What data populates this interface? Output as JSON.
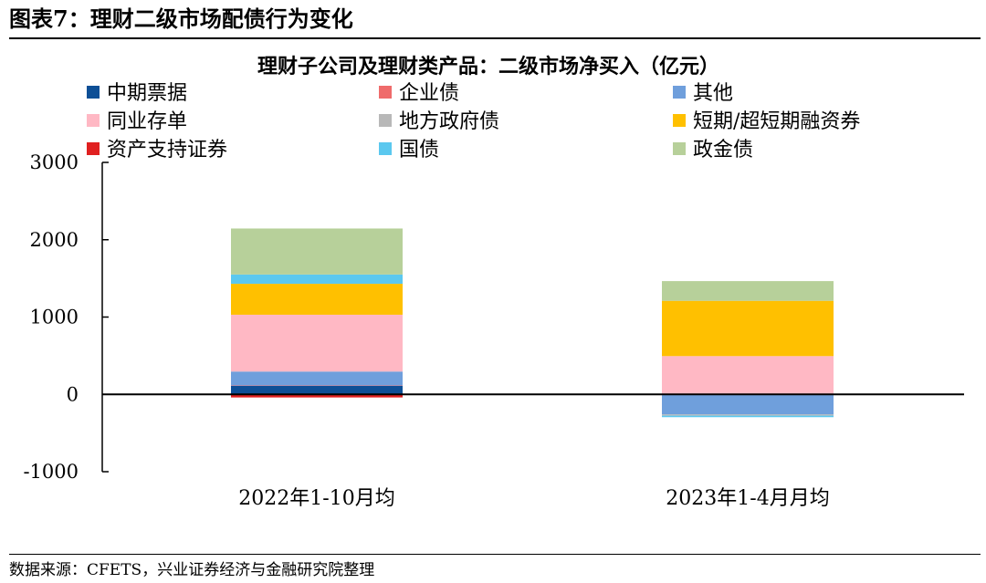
{
  "figure": {
    "title": "图表7：理财二级市场配债行为变化",
    "source": "数据来源：CFETS，兴业证券经济与金融研究院整理"
  },
  "chart_data": {
    "type": "bar",
    "stacked": true,
    "title": "理财子公司及理财类产品：二级市场净买入（亿元）",
    "xlabel": "",
    "ylabel": "",
    "ylim": [
      -1000,
      3000
    ],
    "yticks": [
      -1000,
      0,
      1000,
      2000,
      3000
    ],
    "grid": false,
    "legend_position": "top",
    "categories": [
      "2022年1-10月均",
      "2023年1-4月月均"
    ],
    "series": [
      {
        "name": "中期票据",
        "color": "#0d4f96",
        "values": [
          110,
          -10
        ]
      },
      {
        "name": "企业债",
        "color": "#ef6b6b",
        "values": [
          5,
          0
        ]
      },
      {
        "name": "其他",
        "color": "#6f9fdc",
        "values": [
          180,
          -250
        ]
      },
      {
        "name": "同业存单",
        "color": "#ffb8c4",
        "values": [
          735,
          495
        ]
      },
      {
        "name": "地方政府债",
        "color": "#b8b8b8",
        "values": [
          0,
          -15
        ]
      },
      {
        "name": "短期/超短期融资券",
        "color": "#ffc000",
        "values": [
          400,
          715
        ]
      },
      {
        "name": "资产支持证券",
        "color": "#e02020",
        "values": [
          -40,
          0
        ]
      },
      {
        "name": "国债",
        "color": "#5bc8ef",
        "values": [
          120,
          -20
        ]
      },
      {
        "name": "政金债",
        "color": "#b7d09a",
        "values": [
          595,
          255
        ]
      }
    ]
  }
}
